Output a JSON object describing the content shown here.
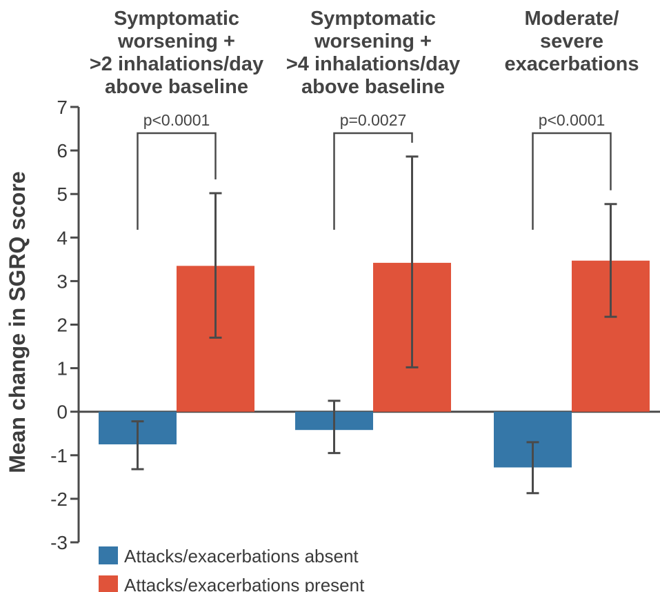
{
  "chart_data": {
    "type": "bar",
    "ylabel": "Mean change in SGRQ score",
    "xlabel": "",
    "ylim": [
      -3,
      7
    ],
    "yticks": [
      "7",
      "6",
      "5",
      "4",
      "3",
      "2",
      "1",
      "0",
      "-1",
      "-2",
      "-3"
    ],
    "categories": [
      "Symptomatic worsening + >2 inhalations/day above baseline",
      "Symptomatic worsening + >4 inhalations/day above baseline",
      "Moderate/ severe exacerbations"
    ],
    "category_lines": [
      [
        "Symptomatic",
        "worsening +",
        ">2 inhalations/day",
        "above baseline"
      ],
      [
        "Symptomatic",
        "worsening +",
        ">4 inhalations/day",
        "above baseline"
      ],
      [
        "Moderate/",
        "severe",
        "exacerbations"
      ]
    ],
    "series": [
      {
        "name": "Attacks/exacerbations absent",
        "color": "#3577a8",
        "values": [
          -0.75,
          -0.42,
          -1.28
        ],
        "error_low": [
          -1.32,
          -0.95,
          -1.87
        ],
        "error_high": [
          -0.22,
          0.25,
          -0.7
        ]
      },
      {
        "name": "Attacks/exacerbations present",
        "color": "#e0533a",
        "values": [
          3.35,
          3.42,
          3.47
        ],
        "error_low": [
          1.7,
          1.02,
          2.18
        ],
        "error_high": [
          5.02,
          5.86,
          4.77
        ]
      }
    ],
    "p_values": [
      "p<0.0001",
      "p=0.0027",
      "p<0.0001"
    ],
    "legend_position": "bottom-left",
    "grid": false
  },
  "colors": {
    "axis": "#4a4a4a",
    "text": "#3d3d3d"
  }
}
